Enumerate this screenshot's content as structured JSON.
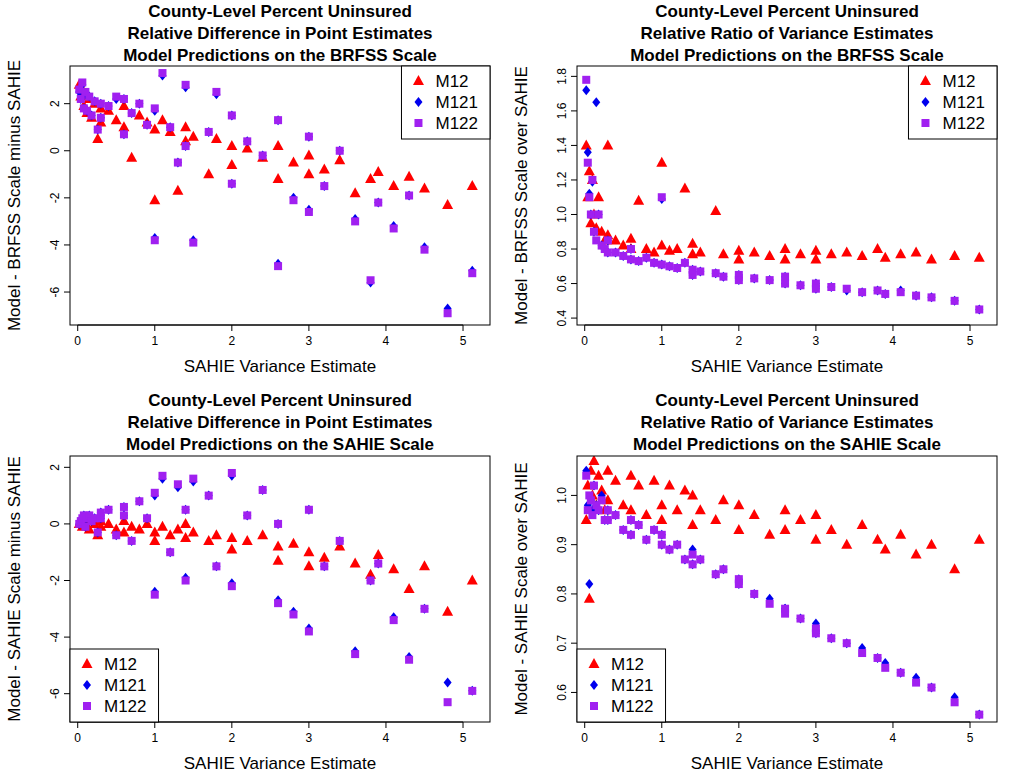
{
  "chart_data": [
    {
      "type": "scatter",
      "title": "County-Level Percent Uninsured\nRelative Difference in Point Estimates\nModel Predictions on the BRFSS Scale",
      "x_label": "SAHIE Variance Estimate",
      "y_label": "Model - BRFSS Scale minus SAHIE",
      "xlim": [
        -0.1,
        5.35
      ],
      "ylim": [
        -7.4,
        3.6
      ],
      "xticks": [
        0,
        1,
        2,
        3,
        4,
        5
      ],
      "yticks": [
        -6,
        -4,
        -2,
        0,
        2
      ],
      "legend": "topright",
      "x": [
        0.02,
        0.04,
        0.06,
        0.08,
        0.1,
        0.12,
        0.15,
        0.18,
        0.22,
        0.26,
        0.3,
        0.3,
        0.4,
        0.5,
        0.6,
        0.6,
        0.7,
        0.8,
        0.9,
        1.0,
        1.0,
        1.1,
        1.2,
        1.3,
        1.4,
        1.4,
        1.5,
        1.7,
        1.8,
        2.0,
        2.0,
        2.2,
        2.4,
        2.6,
        2.6,
        2.8,
        3.0,
        3.0,
        3.2,
        3.4,
        3.6,
        3.8,
        3.9,
        4.1,
        4.3,
        4.5,
        4.8,
        5.12
      ],
      "series": [
        {
          "name": "M12",
          "color": "#ff0000",
          "marker": "triangle",
          "values": [
            2.8,
            2.3,
            2.6,
            1.9,
            2.4,
            1.6,
            2.2,
            1.4,
            2.0,
            0.5,
            1.8,
            1.2,
            1.7,
            1.3,
            1.9,
            1.0,
            -0.3,
            1.5,
            1.2,
            0.9,
            -2.1,
            1.3,
            0.8,
            -1.7,
            1.0,
            0.4,
            0.6,
            -1.0,
            0.5,
            0.2,
            -0.6,
            0.1,
            -0.3,
            0.2,
            -1.2,
            -0.5,
            -0.2,
            -1.0,
            -0.8,
            -0.4,
            -1.8,
            -1.2,
            -0.9,
            -1.5,
            -1.1,
            -1.6,
            -2.3,
            -1.5
          ]
        },
        {
          "name": "M121",
          "color": "#0000ee",
          "marker": "diamond",
          "values": [
            2.5,
            2.2,
            2.8,
            1.8,
            2.4,
            1.7,
            2.3,
            1.5,
            2.1,
            0.9,
            2.0,
            1.4,
            1.9,
            2.2,
            2.2,
            0.7,
            1.6,
            2.0,
            1.1,
            1.7,
            -3.7,
            3.2,
            1.0,
            -0.5,
            2.7,
            0.2,
            -3.8,
            0.8,
            2.4,
            1.5,
            -1.4,
            0.4,
            -0.2,
            1.3,
            -4.8,
            -2.0,
            0.6,
            -2.5,
            -1.5,
            0.0,
            -2.9,
            -5.6,
            -2.2,
            -3.2,
            -1.9,
            -4.1,
            -6.7,
            -5.1
          ]
        },
        {
          "name": "M122",
          "color": "#a020f0",
          "marker": "square",
          "values": [
            2.6,
            2.2,
            2.9,
            1.8,
            2.5,
            1.7,
            2.3,
            1.5,
            2.1,
            0.9,
            2.0,
            1.4,
            1.9,
            2.3,
            2.2,
            0.7,
            1.6,
            2.0,
            1.1,
            1.8,
            -3.8,
            3.3,
            1.0,
            -0.5,
            2.8,
            0.2,
            -3.9,
            0.8,
            2.5,
            1.5,
            -1.4,
            0.4,
            -0.2,
            1.3,
            -4.9,
            -2.1,
            0.6,
            -2.6,
            -1.5,
            0.0,
            -3.0,
            -5.5,
            -2.2,
            -3.3,
            -1.9,
            -4.2,
            -6.9,
            -5.2
          ]
        }
      ]
    },
    {
      "type": "scatter",
      "title": "County-Level Percent Uninsured\nRelative Ratio of Variance Estimates\nModel Predictions on the BRFSS Scale",
      "x_label": "SAHIE Variance Estimate",
      "y_label": "Model - BRFSS Scale over SAHIE",
      "xlim": [
        -0.1,
        5.35
      ],
      "ylim": [
        0.36,
        1.86
      ],
      "xticks": [
        0,
        1,
        2,
        3,
        4,
        5
      ],
      "yticks": [
        0.4,
        0.6,
        0.8,
        {
          "value": 1,
          "label": "1.0"
        },
        1.2,
        1.4,
        1.6,
        1.8
      ],
      "legend": "topright",
      "x": [
        0.02,
        0.04,
        0.06,
        0.08,
        0.1,
        0.12,
        0.15,
        0.18,
        0.22,
        0.26,
        0.3,
        0.3,
        0.4,
        0.5,
        0.6,
        0.6,
        0.7,
        0.8,
        0.9,
        1.0,
        1.0,
        1.1,
        1.2,
        1.3,
        1.4,
        1.4,
        1.5,
        1.7,
        1.8,
        2.0,
        2.0,
        2.2,
        2.4,
        2.6,
        2.6,
        2.8,
        3.0,
        3.0,
        3.2,
        3.4,
        3.6,
        3.8,
        3.9,
        4.1,
        4.3,
        4.5,
        4.8,
        5.12
      ],
      "series": [
        {
          "name": "M12",
          "color": "#ff0000",
          "marker": "triangle",
          "values": [
            1.4,
            1.1,
            1.25,
            0.95,
            1.2,
            1.0,
            0.92,
            1.1,
            0.9,
            0.85,
            1.4,
            0.88,
            0.85,
            0.82,
            0.8,
            0.86,
            1.08,
            0.8,
            0.78,
            0.82,
            1.3,
            0.79,
            0.8,
            1.15,
            0.77,
            0.83,
            0.78,
            1.02,
            0.77,
            0.79,
            0.74,
            0.78,
            0.76,
            0.8,
            0.74,
            0.77,
            0.79,
            0.74,
            0.77,
            0.78,
            0.76,
            0.8,
            0.75,
            0.77,
            0.78,
            0.74,
            0.76,
            0.75
          ]
        },
        {
          "name": "M121",
          "color": "#0000ee",
          "marker": "diamond",
          "values": [
            1.72,
            1.36,
            1.12,
            1.0,
            1.19,
            0.9,
            1.65,
            1.0,
            0.82,
            0.8,
            0.85,
            0.78,
            0.78,
            0.76,
            0.8,
            0.74,
            0.73,
            0.75,
            0.72,
            0.71,
            1.09,
            0.7,
            0.69,
            0.72,
            0.68,
            0.65,
            0.67,
            0.66,
            0.64,
            0.65,
            0.62,
            0.63,
            0.62,
            0.6,
            0.64,
            0.59,
            0.6,
            0.57,
            0.58,
            0.56,
            0.55,
            0.56,
            0.54,
            0.56,
            0.53,
            0.52,
            0.5,
            0.45
          ]
        },
        {
          "name": "M122",
          "color": "#a020f0",
          "marker": "square",
          "values": [
            1.78,
            1.3,
            1.1,
            1.0,
            1.2,
            0.9,
            0.85,
            1.0,
            0.82,
            0.8,
            0.85,
            0.78,
            0.78,
            0.76,
            0.8,
            0.74,
            0.73,
            0.75,
            0.72,
            0.71,
            1.1,
            0.7,
            0.69,
            0.72,
            0.68,
            0.65,
            0.67,
            0.66,
            0.64,
            0.65,
            0.62,
            0.63,
            0.62,
            0.6,
            0.64,
            0.59,
            0.6,
            0.57,
            0.58,
            0.57,
            0.55,
            0.56,
            0.54,
            0.55,
            0.53,
            0.52,
            0.5,
            0.45
          ]
        }
      ]
    },
    {
      "type": "scatter",
      "title": "County-Level Percent Uninsured\nRelative Difference in Point Estimates\nModel Predictions on the SAHIE Scale",
      "x_label": "SAHIE Variance Estimate",
      "y_label": "Model - SAHIE Scale minus SAHIE",
      "xlim": [
        -0.1,
        5.35
      ],
      "ylim": [
        -7.0,
        2.4
      ],
      "xticks": [
        0,
        1,
        2,
        3,
        4,
        5
      ],
      "yticks": [
        -6,
        -4,
        -2,
        0,
        2
      ],
      "legend": "bottomleft",
      "x": [
        0.02,
        0.04,
        0.06,
        0.08,
        0.1,
        0.12,
        0.15,
        0.18,
        0.22,
        0.26,
        0.3,
        0.3,
        0.4,
        0.5,
        0.6,
        0.6,
        0.7,
        0.8,
        0.9,
        1.0,
        1.0,
        1.1,
        1.2,
        1.3,
        1.4,
        1.4,
        1.5,
        1.7,
        1.8,
        2.0,
        2.0,
        2.2,
        2.4,
        2.6,
        2.6,
        2.8,
        3.0,
        3.0,
        3.2,
        3.4,
        3.6,
        3.8,
        3.9,
        4.1,
        4.3,
        4.5,
        4.8,
        5.12
      ],
      "series": [
        {
          "name": "M12",
          "color": "#ff0000",
          "marker": "triangle",
          "values": [
            0.0,
            0.1,
            -0.1,
            0.2,
            0.0,
            0.1,
            -0.2,
            0.1,
            0.0,
            -0.4,
            0.1,
            -0.1,
            0.0,
            -0.2,
            0.1,
            -0.3,
            -0.1,
            -0.2,
            0.0,
            -0.3,
            -0.6,
            -0.1,
            -0.4,
            -0.2,
            -0.5,
            0.0,
            -0.3,
            -0.6,
            -0.4,
            -0.5,
            -0.9,
            -0.6,
            -0.4,
            -0.8,
            -1.3,
            -0.7,
            -1.0,
            -1.5,
            -1.2,
            -0.8,
            -1.4,
            -1.8,
            -1.1,
            -1.6,
            -2.3,
            -1.5,
            -3.1,
            -2.0
          ]
        },
        {
          "name": "M121",
          "color": "#0000ee",
          "marker": "diamond",
          "values": [
            0.0,
            0.1,
            0.2,
            0.3,
            -0.1,
            0.2,
            0.3,
            0.1,
            0.2,
            -0.3,
            0.4,
            0.2,
            0.5,
            -0.4,
            0.6,
            0.3,
            -0.6,
            0.8,
            0.2,
            1.0,
            -2.4,
            1.6,
            -1.0,
            1.3,
            0.5,
            -1.9,
            1.5,
            1.0,
            -1.5,
            1.7,
            -2.1,
            0.3,
            1.2,
            -2.7,
            0.0,
            -3.1,
            0.5,
            -3.7,
            -1.5,
            -0.6,
            -4.5,
            -2.0,
            -1.4,
            -3.3,
            -4.7,
            -3.0,
            -5.6,
            -5.9
          ]
        },
        {
          "name": "M122",
          "color": "#a020f0",
          "marker": "square",
          "values": [
            0.0,
            0.1,
            0.2,
            0.3,
            -0.1,
            0.2,
            0.3,
            0.1,
            0.2,
            -0.3,
            0.4,
            0.2,
            0.5,
            -0.4,
            0.6,
            0.3,
            -0.6,
            0.8,
            0.2,
            1.1,
            -2.5,
            1.7,
            -1.0,
            1.4,
            0.5,
            -2.0,
            1.6,
            1.0,
            -1.5,
            1.8,
            -2.2,
            0.3,
            1.2,
            -2.8,
            0.0,
            -3.2,
            0.5,
            -3.8,
            -1.5,
            -0.6,
            -4.6,
            -2.0,
            -1.4,
            -3.4,
            -4.8,
            -3.0,
            -6.3,
            -5.9
          ]
        }
      ]
    },
    {
      "type": "scatter",
      "title": "County-Level Percent Uninsured\nRelative Ratio of Variance Estimates\nModel Predictions on the SAHIE Scale",
      "x_label": "SAHIE Variance Estimate",
      "y_label": "Model - SAHIE Scale over SAHIE",
      "xlim": [
        -0.1,
        5.35
      ],
      "ylim": [
        0.54,
        1.08
      ],
      "xticks": [
        0,
        1,
        2,
        3,
        4,
        5
      ],
      "yticks": [
        0.6,
        0.7,
        0.8,
        0.9,
        {
          "value": 1,
          "label": "1.0"
        }
      ],
      "legend": "bottomleft",
      "x": [
        0.02,
        0.04,
        0.06,
        0.08,
        0.1,
        0.12,
        0.15,
        0.18,
        0.22,
        0.26,
        0.3,
        0.3,
        0.4,
        0.5,
        0.6,
        0.6,
        0.7,
        0.8,
        0.9,
        1.0,
        1.0,
        1.1,
        1.2,
        1.3,
        1.4,
        1.4,
        1.5,
        1.7,
        1.8,
        2.0,
        2.0,
        2.2,
        2.4,
        2.6,
        2.6,
        2.8,
        3.0,
        3.0,
        3.2,
        3.4,
        3.6,
        3.8,
        3.9,
        4.1,
        4.3,
        4.5,
        4.8,
        5.12
      ],
      "series": [
        {
          "name": "M12",
          "color": "#ff0000",
          "marker": "triangle",
          "values": [
            0.95,
            1.02,
            0.79,
            1.05,
            1.0,
            1.07,
            0.98,
            1.04,
            1.01,
            0.97,
            1.05,
            0.99,
            1.03,
            0.98,
            1.04,
            0.97,
            1.02,
            0.96,
            1.03,
            0.98,
            0.95,
            1.02,
            0.97,
            1.01,
            0.94,
            1.0,
            0.97,
            0.95,
            0.99,
            0.93,
            0.98,
            0.96,
            0.92,
            0.97,
            0.93,
            0.95,
            0.91,
            0.96,
            0.93,
            0.9,
            0.94,
            0.91,
            0.89,
            0.92,
            0.88,
            0.9,
            0.85,
            0.91
          ]
        },
        {
          "name": "M121",
          "color": "#0000ee",
          "marker": "diamond",
          "values": [
            1.05,
            0.98,
            0.82,
            0.99,
            0.97,
            1.02,
            0.98,
            0.97,
            1.0,
            0.95,
            0.97,
            0.95,
            0.96,
            0.93,
            0.95,
            0.92,
            0.94,
            0.91,
            0.93,
            0.9,
            0.92,
            0.89,
            0.9,
            0.87,
            0.89,
            0.86,
            0.87,
            0.84,
            0.85,
            0.82,
            0.83,
            0.8,
            0.79,
            0.77,
            0.77,
            0.75,
            0.74,
            0.72,
            0.71,
            0.7,
            0.69,
            0.67,
            0.66,
            0.64,
            0.63,
            0.61,
            0.59,
            0.555
          ]
        },
        {
          "name": "M122",
          "color": "#a020f0",
          "marker": "square",
          "values": [
            1.04,
            0.97,
            1.0,
            0.99,
            0.96,
            1.02,
            0.98,
            0.97,
            0.99,
            0.95,
            0.97,
            0.95,
            0.96,
            0.93,
            0.95,
            0.92,
            0.94,
            0.91,
            0.93,
            0.9,
            0.92,
            0.89,
            0.9,
            0.87,
            0.88,
            0.86,
            0.87,
            0.84,
            0.85,
            0.82,
            0.83,
            0.8,
            0.78,
            0.77,
            0.76,
            0.75,
            0.73,
            0.72,
            0.71,
            0.7,
            0.68,
            0.67,
            0.65,
            0.64,
            0.62,
            0.61,
            0.58,
            0.555
          ]
        }
      ]
    }
  ]
}
